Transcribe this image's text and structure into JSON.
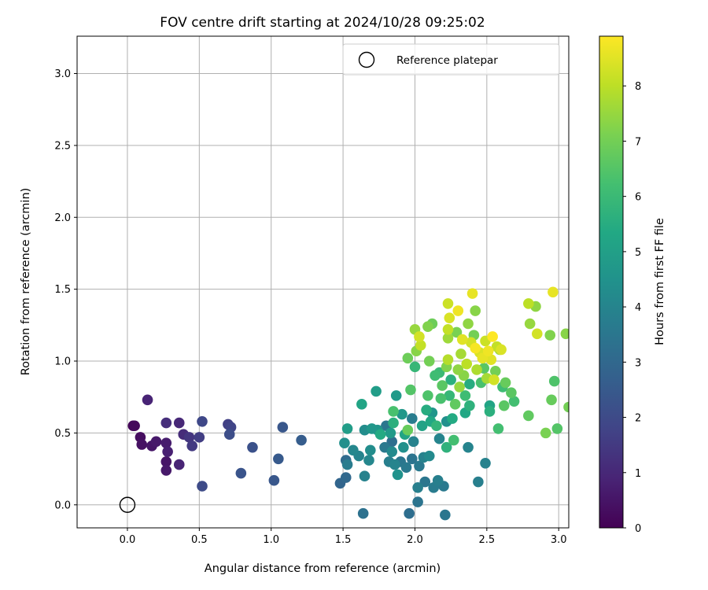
{
  "chart_data": {
    "type": "scatter",
    "title": "FOV centre drift starting at 2024/10/28 09:25:02",
    "xlabel": "Angular distance from reference (arcmin)",
    "ylabel": "Rotation from reference (arcmin)",
    "xlim": [
      -0.35,
      3.07
    ],
    "ylim": [
      -0.16,
      3.26
    ],
    "xticks": [
      "0.0",
      "0.5",
      "1.0",
      "1.5",
      "2.0",
      "2.5",
      "3.0"
    ],
    "yticks": [
      "0.0",
      "0.5",
      "1.0",
      "1.5",
      "2.0",
      "2.5",
      "3.0"
    ],
    "grid": true,
    "legend_position": "top-right",
    "reference": {
      "name": "Reference platepar",
      "x": 0.0,
      "y": 0.0,
      "marker": "open-circle"
    },
    "colorbar": {
      "label": "Hours from first FF file",
      "range": [
        0,
        8.9
      ],
      "ticks": [
        "0",
        "1",
        "2",
        "3",
        "4",
        "5",
        "6",
        "7",
        "8"
      ],
      "colormap": "viridis"
    },
    "points": [
      {
        "x": 0.04,
        "y": 0.55,
        "c": 0.1
      },
      {
        "x": 0.05,
        "y": 0.55,
        "c": 0.2
      },
      {
        "x": 0.09,
        "y": 0.47,
        "c": 0.3
      },
      {
        "x": 0.1,
        "y": 0.42,
        "c": 0.4
      },
      {
        "x": 0.14,
        "y": 0.73,
        "c": 0.9
      },
      {
        "x": 0.17,
        "y": 0.41,
        "c": 0.5
      },
      {
        "x": 0.2,
        "y": 0.44,
        "c": 0.6
      },
      {
        "x": 0.27,
        "y": 0.43,
        "c": 0.7
      },
      {
        "x": 0.28,
        "y": 0.37,
        "c": 0.8
      },
      {
        "x": 0.27,
        "y": 0.3,
        "c": 0.5
      },
      {
        "x": 0.27,
        "y": 0.24,
        "c": 0.6
      },
      {
        "x": 0.27,
        "y": 0.57,
        "c": 1.2
      },
      {
        "x": 0.36,
        "y": 0.57,
        "c": 1.0
      },
      {
        "x": 0.36,
        "y": 0.28,
        "c": 0.9
      },
      {
        "x": 0.39,
        "y": 0.49,
        "c": 1.1
      },
      {
        "x": 0.43,
        "y": 0.47,
        "c": 1.4
      },
      {
        "x": 0.45,
        "y": 0.41,
        "c": 1.5
      },
      {
        "x": 0.5,
        "y": 0.47,
        "c": 1.6
      },
      {
        "x": 0.52,
        "y": 0.58,
        "c": 1.9
      },
      {
        "x": 0.52,
        "y": 0.13,
        "c": 2.0
      },
      {
        "x": 0.7,
        "y": 0.56,
        "c": 1.7
      },
      {
        "x": 0.72,
        "y": 0.54,
        "c": 1.8
      },
      {
        "x": 0.71,
        "y": 0.49,
        "c": 2.1
      },
      {
        "x": 0.79,
        "y": 0.22,
        "c": 2.3
      },
      {
        "x": 0.87,
        "y": 0.4,
        "c": 2.2
      },
      {
        "x": 1.02,
        "y": 0.17,
        "c": 2.4
      },
      {
        "x": 1.05,
        "y": 0.32,
        "c": 2.5
      },
      {
        "x": 1.08,
        "y": 0.54,
        "c": 2.4
      },
      {
        "x": 1.21,
        "y": 0.45,
        "c": 2.6
      },
      {
        "x": 1.48,
        "y": 0.15,
        "c": 2.9
      },
      {
        "x": 1.52,
        "y": 0.19,
        "c": 3.0
      },
      {
        "x": 1.52,
        "y": 0.31,
        "c": 3.1
      },
      {
        "x": 1.53,
        "y": 0.53,
        "c": 4.9
      },
      {
        "x": 1.53,
        "y": 0.28,
        "c": 3.7
      },
      {
        "x": 1.51,
        "y": 0.43,
        "c": 4.4
      },
      {
        "x": 1.57,
        "y": 0.38,
        "c": 4.1
      },
      {
        "x": 1.61,
        "y": 0.34,
        "c": 4.0
      },
      {
        "x": 1.63,
        "y": 0.7,
        "c": 5.2
      },
      {
        "x": 1.64,
        "y": -0.06,
        "c": 3.3
      },
      {
        "x": 1.65,
        "y": 0.52,
        "c": 4.3
      },
      {
        "x": 1.65,
        "y": 0.2,
        "c": 3.9
      },
      {
        "x": 1.68,
        "y": 0.31,
        "c": 4.1
      },
      {
        "x": 1.69,
        "y": 0.38,
        "c": 4.3
      },
      {
        "x": 1.7,
        "y": 0.53,
        "c": 4.7
      },
      {
        "x": 1.73,
        "y": 0.79,
        "c": 4.9
      },
      {
        "x": 1.74,
        "y": 0.52,
        "c": 4.6
      },
      {
        "x": 1.76,
        "y": 0.49,
        "c": 5.4
      },
      {
        "x": 1.79,
        "y": 0.4,
        "c": 3.6
      },
      {
        "x": 1.8,
        "y": 0.55,
        "c": 3.5
      },
      {
        "x": 1.82,
        "y": 0.3,
        "c": 3.8
      },
      {
        "x": 1.83,
        "y": 0.5,
        "c": 4.8
      },
      {
        "x": 1.84,
        "y": 0.37,
        "c": 4.2
      },
      {
        "x": 1.84,
        "y": 0.44,
        "c": 3.2
      },
      {
        "x": 1.85,
        "y": 0.65,
        "c": 6.3
      },
      {
        "x": 1.85,
        "y": 0.57,
        "c": 5.6
      },
      {
        "x": 1.86,
        "y": 0.28,
        "c": 4.0
      },
      {
        "x": 1.87,
        "y": 0.76,
        "c": 4.8
      },
      {
        "x": 1.88,
        "y": 0.21,
        "c": 4.5
      },
      {
        "x": 1.9,
        "y": 0.3,
        "c": 3.5
      },
      {
        "x": 1.91,
        "y": 0.63,
        "c": 4.7
      },
      {
        "x": 1.92,
        "y": 0.4,
        "c": 4.4
      },
      {
        "x": 1.93,
        "y": 0.49,
        "c": 5.2
      },
      {
        "x": 1.94,
        "y": 0.26,
        "c": 3.6
      },
      {
        "x": 1.95,
        "y": 0.52,
        "c": 6.8
      },
      {
        "x": 1.95,
        "y": 1.02,
        "c": 6.9
      },
      {
        "x": 1.96,
        "y": -0.06,
        "c": 3.2
      },
      {
        "x": 1.97,
        "y": 0.8,
        "c": 6.5
      },
      {
        "x": 1.98,
        "y": 0.6,
        "c": 3.7
      },
      {
        "x": 1.98,
        "y": 0.32,
        "c": 3.4
      },
      {
        "x": 1.99,
        "y": 0.44,
        "c": 3.9
      },
      {
        "x": 2.0,
        "y": 1.22,
        "c": 7.5
      },
      {
        "x": 2.0,
        "y": 0.96,
        "c": 5.9
      },
      {
        "x": 2.01,
        "y": 1.07,
        "c": 7.3
      },
      {
        "x": 2.02,
        "y": 0.12,
        "c": 3.8
      },
      {
        "x": 2.02,
        "y": 0.02,
        "c": 3.4
      },
      {
        "x": 2.03,
        "y": 0.27,
        "c": 3.6
      },
      {
        "x": 2.03,
        "y": 1.17,
        "c": 8.3
      },
      {
        "x": 2.04,
        "y": 1.11,
        "c": 8.1
      },
      {
        "x": 2.05,
        "y": 0.55,
        "c": 5.1
      },
      {
        "x": 2.06,
        "y": 0.33,
        "c": 3.9
      },
      {
        "x": 2.07,
        "y": 0.16,
        "c": 3.5
      },
      {
        "x": 2.08,
        "y": 0.66,
        "c": 5.5
      },
      {
        "x": 2.09,
        "y": 0.76,
        "c": 6.4
      },
      {
        "x": 2.09,
        "y": 1.24,
        "c": 7.2
      },
      {
        "x": 2.1,
        "y": 1.0,
        "c": 7.0
      },
      {
        "x": 2.1,
        "y": 0.34,
        "c": 4.2
      },
      {
        "x": 2.11,
        "y": 0.58,
        "c": 5.3
      },
      {
        "x": 2.12,
        "y": 1.26,
        "c": 6.9
      },
      {
        "x": 2.12,
        "y": 0.64,
        "c": 4.6
      },
      {
        "x": 2.13,
        "y": 0.12,
        "c": 3.7
      },
      {
        "x": 2.14,
        "y": 0.9,
        "c": 6.1
      },
      {
        "x": 2.15,
        "y": 0.55,
        "c": 5.8
      },
      {
        "x": 2.16,
        "y": 0.17,
        "c": 3.8
      },
      {
        "x": 2.17,
        "y": 0.92,
        "c": 6.0
      },
      {
        "x": 2.17,
        "y": 0.46,
        "c": 4.0
      },
      {
        "x": 2.18,
        "y": 0.74,
        "c": 6.3
      },
      {
        "x": 2.19,
        "y": 0.83,
        "c": 6.6
      },
      {
        "x": 2.2,
        "y": 0.13,
        "c": 3.6
      },
      {
        "x": 2.21,
        "y": -0.07,
        "c": 3.5
      },
      {
        "x": 2.22,
        "y": 0.4,
        "c": 5.7
      },
      {
        "x": 2.22,
        "y": 0.58,
        "c": 4.4
      },
      {
        "x": 2.22,
        "y": 0.96,
        "c": 7.2
      },
      {
        "x": 2.23,
        "y": 1.16,
        "c": 7.6
      },
      {
        "x": 2.23,
        "y": 1.01,
        "c": 7.9
      },
      {
        "x": 2.23,
        "y": 1.22,
        "c": 8.1
      },
      {
        "x": 2.23,
        "y": 1.4,
        "c": 8.2
      },
      {
        "x": 2.24,
        "y": 1.3,
        "c": 8.4
      },
      {
        "x": 2.24,
        "y": 0.76,
        "c": 5.9
      },
      {
        "x": 2.25,
        "y": 0.87,
        "c": 5.6
      },
      {
        "x": 2.26,
        "y": 0.6,
        "c": 5.4
      },
      {
        "x": 2.27,
        "y": 0.45,
        "c": 6.2
      },
      {
        "x": 2.28,
        "y": 0.7,
        "c": 6.7
      },
      {
        "x": 2.29,
        "y": 1.2,
        "c": 7.1
      },
      {
        "x": 2.3,
        "y": 1.35,
        "c": 8.7
      },
      {
        "x": 2.3,
        "y": 0.94,
        "c": 7.4
      },
      {
        "x": 2.31,
        "y": 0.82,
        "c": 7.5
      },
      {
        "x": 2.32,
        "y": 1.05,
        "c": 7.7
      },
      {
        "x": 2.33,
        "y": 1.15,
        "c": 8.5
      },
      {
        "x": 2.34,
        "y": 0.9,
        "c": 7.3
      },
      {
        "x": 2.35,
        "y": 0.64,
        "c": 5.3
      },
      {
        "x": 2.35,
        "y": 0.76,
        "c": 6.1
      },
      {
        "x": 2.36,
        "y": 0.98,
        "c": 8.0
      },
      {
        "x": 2.37,
        "y": 1.26,
        "c": 7.4
      },
      {
        "x": 2.37,
        "y": 0.4,
        "c": 4.0
      },
      {
        "x": 2.38,
        "y": 0.69,
        "c": 5.7
      },
      {
        "x": 2.38,
        "y": 0.84,
        "c": 5.5
      },
      {
        "x": 2.39,
        "y": 1.13,
        "c": 8.3
      },
      {
        "x": 2.4,
        "y": 1.47,
        "c": 8.6
      },
      {
        "x": 2.41,
        "y": 1.18,
        "c": 7.0
      },
      {
        "x": 2.42,
        "y": 1.35,
        "c": 7.3
      },
      {
        "x": 2.42,
        "y": 1.09,
        "c": 8.8
      },
      {
        "x": 2.43,
        "y": 0.94,
        "c": 7.8
      },
      {
        "x": 2.44,
        "y": 0.16,
        "c": 3.8
      },
      {
        "x": 2.45,
        "y": 1.06,
        "c": 8.4
      },
      {
        "x": 2.46,
        "y": 0.85,
        "c": 6.3
      },
      {
        "x": 2.47,
        "y": 1.02,
        "c": 8.6
      },
      {
        "x": 2.48,
        "y": 0.95,
        "c": 6.6
      },
      {
        "x": 2.49,
        "y": 0.29,
        "c": 3.9
      },
      {
        "x": 2.49,
        "y": 1.14,
        "c": 8.2
      },
      {
        "x": 2.5,
        "y": 0.88,
        "c": 7.7
      },
      {
        "x": 2.51,
        "y": 1.07,
        "c": 8.7
      },
      {
        "x": 2.52,
        "y": 0.65,
        "c": 5.6
      },
      {
        "x": 2.52,
        "y": 0.69,
        "c": 5.2
      },
      {
        "x": 2.53,
        "y": 1.01,
        "c": 8.5
      },
      {
        "x": 2.54,
        "y": 1.17,
        "c": 8.9
      },
      {
        "x": 2.55,
        "y": 0.87,
        "c": 8.3
      },
      {
        "x": 2.56,
        "y": 0.93,
        "c": 7.0
      },
      {
        "x": 2.57,
        "y": 1.1,
        "c": 8.1
      },
      {
        "x": 2.58,
        "y": 0.53,
        "c": 6.2
      },
      {
        "x": 2.59,
        "y": 1.08,
        "c": 7.6
      },
      {
        "x": 2.6,
        "y": 1.08,
        "c": 8.4
      },
      {
        "x": 2.61,
        "y": 0.82,
        "c": 6.1
      },
      {
        "x": 2.62,
        "y": 0.69,
        "c": 6.6
      },
      {
        "x": 2.63,
        "y": 0.85,
        "c": 6.8
      },
      {
        "x": 2.67,
        "y": 0.78,
        "c": 6.6
      },
      {
        "x": 2.69,
        "y": 0.72,
        "c": 6.2
      },
      {
        "x": 2.79,
        "y": 0.62,
        "c": 6.7
      },
      {
        "x": 2.79,
        "y": 1.4,
        "c": 8.0
      },
      {
        "x": 2.8,
        "y": 1.26,
        "c": 7.5
      },
      {
        "x": 2.84,
        "y": 1.38,
        "c": 7.4
      },
      {
        "x": 2.85,
        "y": 1.19,
        "c": 8.3
      },
      {
        "x": 2.91,
        "y": 0.5,
        "c": 7.1
      },
      {
        "x": 2.94,
        "y": 1.18,
        "c": 7.2
      },
      {
        "x": 2.95,
        "y": 0.73,
        "c": 6.8
      },
      {
        "x": 2.96,
        "y": 1.48,
        "c": 8.6
      },
      {
        "x": 2.97,
        "y": 0.86,
        "c": 6.4
      },
      {
        "x": 2.99,
        "y": 0.53,
        "c": 6.5
      },
      {
        "x": 3.05,
        "y": 1.19,
        "c": 7.3
      },
      {
        "x": 3.07,
        "y": 0.68,
        "c": 7.0
      }
    ]
  }
}
